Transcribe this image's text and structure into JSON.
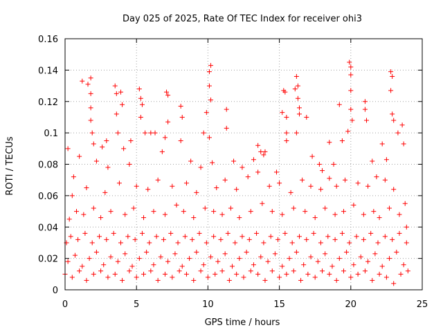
{
  "chart_data": {
    "type": "scatter",
    "title": "Day 025 of 2025, Rate Of TEC Index for receiver ohi3",
    "xlabel": "GPS time / hours",
    "ylabel": "ROTI / TECUs",
    "xlim": [
      0,
      25
    ],
    "ylim": [
      0,
      0.16
    ],
    "xticks": [
      0,
      5,
      10,
      15,
      20,
      25
    ],
    "xtick_labels": [
      "0",
      "5",
      "10",
      "15",
      "20",
      "25"
    ],
    "yticks": [
      0,
      0.02,
      0.04,
      0.06,
      0.08,
      0.1,
      0.12,
      0.14,
      0.16
    ],
    "ytick_labels": [
      "0",
      "0.02",
      "0.04",
      "0.06",
      "0.08",
      "0.1",
      "0.12",
      "0.14",
      "0.16"
    ],
    "grid": true,
    "marker": "plus",
    "series": [
      {
        "name": "ROTI",
        "color": "#ff0000",
        "points": [
          [
            0.2,
            0.09
          ],
          [
            0.6,
            0.072
          ],
          [
            1.2,
            0.133
          ],
          [
            1.6,
            0.131
          ],
          [
            1.8,
            0.135
          ],
          [
            1.8,
            0.125
          ],
          [
            1.8,
            0.116
          ],
          [
            1.8,
            0.108
          ],
          [
            1.9,
            0.1
          ],
          [
            2.0,
            0.093
          ],
          [
            2.6,
            0.091
          ],
          [
            2.9,
            0.095
          ],
          [
            3.5,
            0.13
          ],
          [
            3.6,
            0.125
          ],
          [
            3.6,
            0.112
          ],
          [
            3.7,
            0.1
          ],
          [
            3.9,
            0.126
          ],
          [
            4.0,
            0.118
          ],
          [
            4.1,
            0.09
          ],
          [
            4.6,
            0.095
          ],
          [
            5.2,
            0.128
          ],
          [
            5.3,
            0.122
          ],
          [
            5.4,
            0.118
          ],
          [
            5.3,
            0.11
          ],
          [
            5.6,
            0.1
          ],
          [
            6.0,
            0.1
          ],
          [
            6.3,
            0.1
          ],
          [
            7.1,
            0.126
          ],
          [
            7.2,
            0.124
          ],
          [
            7.0,
            0.097
          ],
          [
            7.2,
            0.107
          ],
          [
            8.1,
            0.117
          ],
          [
            8.2,
            0.11
          ],
          [
            8.1,
            0.095
          ],
          [
            9.7,
            0.1
          ],
          [
            9.9,
            0.113
          ],
          [
            10.1,
            0.139
          ],
          [
            10.2,
            0.143
          ],
          [
            10.1,
            0.13
          ],
          [
            10.2,
            0.121
          ],
          [
            10.1,
            0.097
          ],
          [
            10.3,
            0.081
          ],
          [
            11.3,
            0.115
          ],
          [
            11.3,
            0.103
          ],
          [
            13.5,
            0.092
          ],
          [
            13.7,
            0.088
          ],
          [
            13.9,
            0.086
          ],
          [
            15.2,
            0.113
          ],
          [
            15.3,
            0.127
          ],
          [
            15.4,
            0.126
          ],
          [
            15.5,
            0.11
          ],
          [
            15.5,
            0.1
          ],
          [
            15.5,
            0.095
          ],
          [
            16.1,
            0.128
          ],
          [
            16.2,
            0.136
          ],
          [
            16.3,
            0.13
          ],
          [
            16.3,
            0.122
          ],
          [
            16.4,
            0.116
          ],
          [
            16.4,
            0.112
          ],
          [
            16.2,
            0.1
          ],
          [
            16.9,
            0.11
          ],
          [
            17.3,
            0.085
          ],
          [
            18.5,
            0.094
          ],
          [
            19.2,
            0.118
          ],
          [
            19.4,
            0.095
          ],
          [
            19.8,
            0.101
          ],
          [
            19.9,
            0.145
          ],
          [
            20.0,
            0.142
          ],
          [
            20.0,
            0.137
          ],
          [
            20.0,
            0.127
          ],
          [
            20.0,
            0.115
          ],
          [
            20.1,
            0.108
          ],
          [
            21.0,
            0.12
          ],
          [
            21.0,
            0.115
          ],
          [
            21.1,
            0.108
          ],
          [
            22.8,
            0.139
          ],
          [
            22.9,
            0.136
          ],
          [
            22.8,
            0.127
          ],
          [
            22.9,
            0.112
          ],
          [
            23.0,
            0.108
          ],
          [
            23.3,
            0.1
          ],
          [
            23.6,
            0.105
          ],
          [
            23.7,
            0.093
          ],
          [
            1.0,
            0.085
          ],
          [
            2.2,
            0.082
          ],
          [
            3.0,
            0.078
          ],
          [
            4.5,
            0.08
          ],
          [
            6.8,
            0.088
          ],
          [
            8.8,
            0.082
          ],
          [
            9.5,
            0.078
          ],
          [
            11.8,
            0.082
          ],
          [
            12.4,
            0.078
          ],
          [
            13.2,
            0.083
          ],
          [
            14.0,
            0.088
          ],
          [
            14.8,
            0.075
          ],
          [
            17.8,
            0.08
          ],
          [
            18.0,
            0.076
          ],
          [
            18.8,
            0.08
          ],
          [
            21.5,
            0.082
          ],
          [
            22.2,
            0.093
          ],
          [
            22.5,
            0.083
          ],
          [
            0.5,
            0.06
          ],
          [
            1.5,
            0.065
          ],
          [
            2.8,
            0.062
          ],
          [
            3.8,
            0.068
          ],
          [
            5.0,
            0.066
          ],
          [
            5.8,
            0.064
          ],
          [
            6.5,
            0.07
          ],
          [
            7.5,
            0.066
          ],
          [
            8.5,
            0.068
          ],
          [
            9.2,
            0.062
          ],
          [
            10.6,
            0.065
          ],
          [
            11.2,
            0.07
          ],
          [
            12.0,
            0.064
          ],
          [
            12.8,
            0.072
          ],
          [
            13.5,
            0.075
          ],
          [
            14.3,
            0.066
          ],
          [
            15.0,
            0.068
          ],
          [
            15.8,
            0.062
          ],
          [
            16.6,
            0.07
          ],
          [
            17.2,
            0.066
          ],
          [
            17.9,
            0.064
          ],
          [
            18.5,
            0.071
          ],
          [
            19.0,
            0.066
          ],
          [
            19.6,
            0.07
          ],
          [
            20.5,
            0.068
          ],
          [
            21.2,
            0.066
          ],
          [
            21.8,
            0.072
          ],
          [
            22.4,
            0.07
          ],
          [
            23.0,
            0.064
          ],
          [
            23.8,
            0.055
          ],
          [
            0.3,
            0.045
          ],
          [
            0.8,
            0.05
          ],
          [
            1.3,
            0.048
          ],
          [
            2.0,
            0.052
          ],
          [
            2.5,
            0.046
          ],
          [
            3.2,
            0.05
          ],
          [
            4.2,
            0.048
          ],
          [
            4.8,
            0.052
          ],
          [
            5.5,
            0.046
          ],
          [
            6.2,
            0.05
          ],
          [
            7.0,
            0.048
          ],
          [
            7.8,
            0.054
          ],
          [
            8.3,
            0.05
          ],
          [
            9.0,
            0.046
          ],
          [
            9.8,
            0.052
          ],
          [
            10.4,
            0.05
          ],
          [
            11.0,
            0.048
          ],
          [
            11.6,
            0.052
          ],
          [
            12.2,
            0.046
          ],
          [
            13.0,
            0.05
          ],
          [
            13.8,
            0.055
          ],
          [
            14.5,
            0.05
          ],
          [
            15.2,
            0.048
          ],
          [
            16.0,
            0.052
          ],
          [
            16.8,
            0.05
          ],
          [
            17.5,
            0.046
          ],
          [
            18.2,
            0.052
          ],
          [
            18.9,
            0.048
          ],
          [
            19.5,
            0.05
          ],
          [
            20.2,
            0.054
          ],
          [
            20.9,
            0.048
          ],
          [
            21.6,
            0.05
          ],
          [
            22.0,
            0.046
          ],
          [
            22.7,
            0.052
          ],
          [
            23.4,
            0.048
          ],
          [
            23.9,
            0.04
          ],
          [
            0.1,
            0.03
          ],
          [
            0.4,
            0.034
          ],
          [
            0.9,
            0.032
          ],
          [
            1.4,
            0.036
          ],
          [
            1.9,
            0.03
          ],
          [
            2.4,
            0.034
          ],
          [
            2.9,
            0.032
          ],
          [
            3.4,
            0.036
          ],
          [
            3.9,
            0.03
          ],
          [
            4.4,
            0.034
          ],
          [
            4.9,
            0.032
          ],
          [
            5.4,
            0.036
          ],
          [
            5.9,
            0.03
          ],
          [
            6.4,
            0.034
          ],
          [
            6.9,
            0.032
          ],
          [
            7.4,
            0.036
          ],
          [
            7.9,
            0.03
          ],
          [
            8.4,
            0.034
          ],
          [
            8.9,
            0.032
          ],
          [
            9.4,
            0.036
          ],
          [
            9.9,
            0.03
          ],
          [
            10.4,
            0.034
          ],
          [
            10.9,
            0.032
          ],
          [
            11.4,
            0.036
          ],
          [
            11.9,
            0.03
          ],
          [
            12.4,
            0.034
          ],
          [
            12.9,
            0.032
          ],
          [
            13.4,
            0.036
          ],
          [
            13.9,
            0.03
          ],
          [
            14.4,
            0.034
          ],
          [
            14.9,
            0.032
          ],
          [
            15.4,
            0.036
          ],
          [
            15.9,
            0.03
          ],
          [
            16.4,
            0.034
          ],
          [
            16.9,
            0.032
          ],
          [
            17.4,
            0.036
          ],
          [
            17.9,
            0.03
          ],
          [
            18.4,
            0.034
          ],
          [
            18.9,
            0.032
          ],
          [
            19.4,
            0.036
          ],
          [
            19.9,
            0.03
          ],
          [
            20.4,
            0.034
          ],
          [
            20.9,
            0.032
          ],
          [
            21.4,
            0.036
          ],
          [
            21.9,
            0.03
          ],
          [
            22.4,
            0.034
          ],
          [
            22.9,
            0.032
          ],
          [
            23.4,
            0.036
          ],
          [
            23.9,
            0.03
          ],
          [
            0.2,
            0.018
          ],
          [
            0.7,
            0.022
          ],
          [
            1.2,
            0.015
          ],
          [
            1.7,
            0.02
          ],
          [
            2.2,
            0.024
          ],
          [
            2.7,
            0.016
          ],
          [
            3.2,
            0.021
          ],
          [
            3.7,
            0.018
          ],
          [
            4.2,
            0.023
          ],
          [
            4.7,
            0.015
          ],
          [
            5.2,
            0.02
          ],
          [
            5.7,
            0.024
          ],
          [
            6.2,
            0.016
          ],
          [
            6.7,
            0.021
          ],
          [
            7.2,
            0.018
          ],
          [
            7.7,
            0.023
          ],
          [
            8.2,
            0.015
          ],
          [
            8.7,
            0.02
          ],
          [
            9.2,
            0.024
          ],
          [
            9.7,
            0.016
          ],
          [
            10.2,
            0.021
          ],
          [
            10.7,
            0.018
          ],
          [
            11.2,
            0.023
          ],
          [
            11.7,
            0.015
          ],
          [
            12.2,
            0.02
          ],
          [
            12.7,
            0.024
          ],
          [
            13.2,
            0.016
          ],
          [
            13.7,
            0.021
          ],
          [
            14.2,
            0.018
          ],
          [
            14.7,
            0.023
          ],
          [
            15.2,
            0.015
          ],
          [
            15.7,
            0.02
          ],
          [
            16.2,
            0.024
          ],
          [
            16.7,
            0.016
          ],
          [
            17.2,
            0.021
          ],
          [
            17.7,
            0.018
          ],
          [
            18.2,
            0.023
          ],
          [
            18.7,
            0.015
          ],
          [
            19.2,
            0.02
          ],
          [
            19.7,
            0.024
          ],
          [
            20.2,
            0.016
          ],
          [
            20.7,
            0.021
          ],
          [
            21.2,
            0.018
          ],
          [
            21.7,
            0.023
          ],
          [
            22.2,
            0.015
          ],
          [
            22.7,
            0.02
          ],
          [
            23.2,
            0.024
          ],
          [
            23.7,
            0.016
          ],
          [
            0.0,
            0.01
          ],
          [
            0.5,
            0.008
          ],
          [
            1.0,
            0.012
          ],
          [
            1.5,
            0.006
          ],
          [
            2.0,
            0.01
          ],
          [
            2.5,
            0.012
          ],
          [
            3.0,
            0.008
          ],
          [
            3.5,
            0.01
          ],
          [
            4.0,
            0.006
          ],
          [
            4.5,
            0.012
          ],
          [
            5.0,
            0.008
          ],
          [
            5.5,
            0.01
          ],
          [
            6.0,
            0.012
          ],
          [
            6.5,
            0.006
          ],
          [
            7.0,
            0.01
          ],
          [
            7.5,
            0.008
          ],
          [
            8.0,
            0.012
          ],
          [
            8.5,
            0.01
          ],
          [
            9.0,
            0.006
          ],
          [
            9.5,
            0.012
          ],
          [
            10.0,
            0.008
          ],
          [
            10.5,
            0.01
          ],
          [
            11.0,
            0.012
          ],
          [
            11.5,
            0.006
          ],
          [
            12.0,
            0.01
          ],
          [
            12.5,
            0.008
          ],
          [
            13.0,
            0.012
          ],
          [
            13.5,
            0.01
          ],
          [
            14.0,
            0.006
          ],
          [
            14.5,
            0.012
          ],
          [
            15.0,
            0.008
          ],
          [
            15.5,
            0.01
          ],
          [
            16.0,
            0.012
          ],
          [
            16.5,
            0.006
          ],
          [
            17.0,
            0.01
          ],
          [
            17.5,
            0.008
          ],
          [
            18.0,
            0.012
          ],
          [
            18.5,
            0.01
          ],
          [
            19.0,
            0.006
          ],
          [
            19.5,
            0.012
          ],
          [
            20.0,
            0.008
          ],
          [
            20.5,
            0.01
          ],
          [
            21.0,
            0.012
          ],
          [
            21.5,
            0.006
          ],
          [
            22.0,
            0.01
          ],
          [
            22.5,
            0.008
          ],
          [
            23.0,
            0.004
          ],
          [
            23.5,
            0.01
          ],
          [
            24.0,
            0.012
          ]
        ]
      }
    ]
  }
}
